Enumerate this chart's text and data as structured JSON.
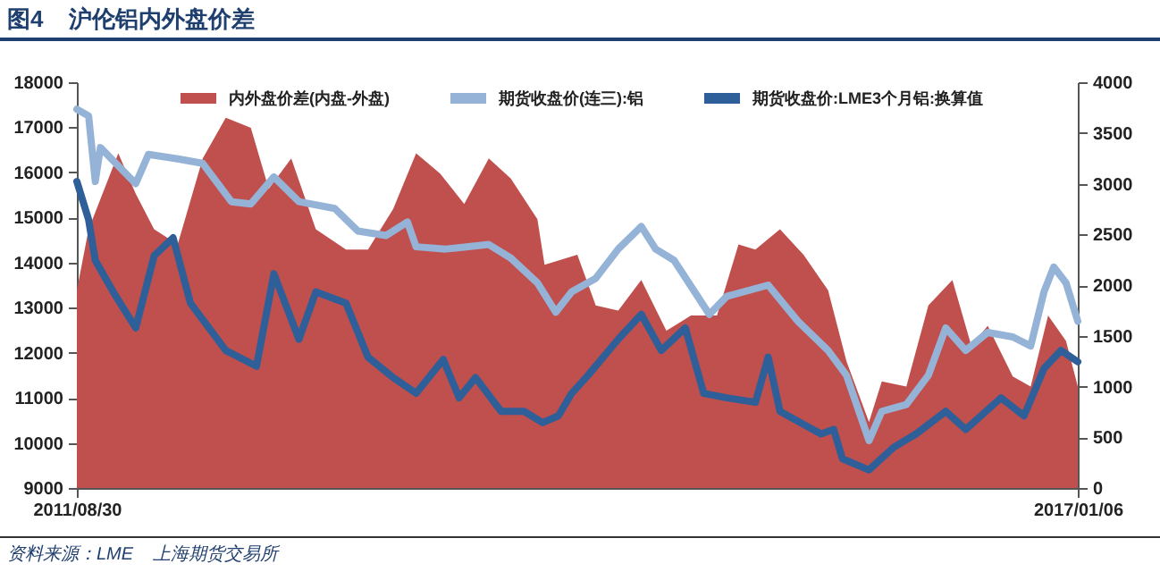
{
  "chart_data": {
    "type": "line",
    "title": "图4    沪伦铝内外盘价差",
    "annotations": [
      "资料来源：LME    上海期货交易所"
    ],
    "xlim": [
      "2011-08-30",
      "2017-01-06"
    ],
    "xticks": [
      {
        "value": "2011-08-30",
        "label": "2011/08/30"
      },
      {
        "value": "2017-01-06",
        "label": "2017/01/06"
      }
    ],
    "ylim": [
      9000,
      18000
    ],
    "yticks": [
      9000,
      10000,
      11000,
      12000,
      13000,
      14000,
      15000,
      16000,
      17000,
      18000
    ],
    "y2lim": [
      0,
      4000
    ],
    "y2ticks": [
      0,
      500,
      1000,
      1500,
      2000,
      2500,
      3000,
      3500,
      4000
    ],
    "grid": false,
    "legend": "top",
    "series": [
      {
        "name": "内外盘价差(内盘-外盘)",
        "type": "area",
        "axis": "y2",
        "color": "#c0504d",
        "x": [
          "2011-08-30",
          "2011-09-22",
          "2011-11-19",
          "2011-12-23",
          "2012-01-28",
          "2012-03-14",
          "2012-05-02",
          "2012-06-16",
          "2012-08-04",
          "2012-09-08",
          "2012-10-22",
          "2012-12-09",
          "2013-02-06",
          "2013-03-21",
          "2013-05-09",
          "2013-06-23",
          "2013-08-09",
          "2013-09-25",
          "2013-11-12",
          "2013-12-25",
          "2014-02-15",
          "2014-03-01",
          "2014-05-04",
          "2014-06-09",
          "2014-07-23",
          "2014-09-06",
          "2014-10-25",
          "2014-12-12",
          "2015-02-01",
          "2015-03-15",
          "2015-04-17",
          "2015-06-04",
          "2015-07-20",
          "2015-09-06",
          "2015-10-12",
          "2015-11-25",
          "2015-12-20",
          "2016-02-06",
          "2016-03-20",
          "2016-05-06",
          "2016-06-12",
          "2016-07-14",
          "2016-09-01",
          "2016-10-06",
          "2016-11-09",
          "2016-12-14",
          "2017-01-06"
        ],
        "values": [
          1950,
          2550,
          3300,
          2900,
          2550,
          2400,
          3250,
          3650,
          3550,
          2950,
          3250,
          2550,
          2350,
          2350,
          2750,
          3300,
          3100,
          2800,
          3250,
          3050,
          2650,
          2200,
          2300,
          1800,
          1750,
          2050,
          1550,
          1700,
          1700,
          2400,
          2350,
          2550,
          2300,
          1950,
          1250,
          650,
          1050,
          1000,
          1800,
          2050,
          1400,
          1600,
          1100,
          1000,
          1700,
          1450,
          1000
        ]
      },
      {
        "name": "期货收盘价(连三):铝",
        "axis": "y",
        "color": "#95b3d7",
        "x": [
          "2011-08-30",
          "2011-09-22",
          "2011-10-05",
          "2011-10-15",
          "2011-12-23",
          "2012-01-17",
          "2012-03-14",
          "2012-05-02",
          "2012-06-27",
          "2012-08-04",
          "2012-09-18",
          "2012-11-06",
          "2013-01-15",
          "2013-03-01",
          "2013-04-25",
          "2013-06-06",
          "2013-06-23",
          "2013-08-20",
          "2013-11-12",
          "2013-12-25",
          "2014-02-15",
          "2014-03-23",
          "2014-04-23",
          "2014-06-09",
          "2014-07-23",
          "2014-09-06",
          "2014-10-04",
          "2014-11-09",
          "2015-01-17",
          "2015-02-20",
          "2015-05-12",
          "2015-07-09",
          "2015-09-06",
          "2015-10-12",
          "2015-11-25",
          "2015-12-20",
          "2016-02-06",
          "2016-03-20",
          "2016-04-23",
          "2016-06-01",
          "2016-07-14",
          "2016-09-01",
          "2016-10-06",
          "2016-11-01",
          "2016-11-20",
          "2016-12-14",
          "2017-01-06"
        ],
        "values": [
          17400,
          17250,
          15800,
          16550,
          15750,
          16400,
          16300,
          16200,
          15350,
          15300,
          15900,
          15350,
          15200,
          14700,
          14600,
          14900,
          14350,
          14300,
          14400,
          14100,
          13550,
          12900,
          13350,
          13650,
          14300,
          14800,
          14300,
          14050,
          12850,
          13250,
          13500,
          12700,
          12050,
          11500,
          10050,
          10700,
          10850,
          11500,
          12550,
          12050,
          12450,
          12350,
          12150,
          13350,
          13900,
          13550,
          12700
        ]
      },
      {
        "name": "期货收盘价:LME3个月铝:换算值",
        "axis": "y",
        "color": "#2f5f98",
        "x": [
          "2011-08-30",
          "2011-09-22",
          "2011-10-05",
          "2011-11-09",
          "2011-12-23",
          "2012-01-28",
          "2012-03-05",
          "2012-04-08",
          "2012-06-16",
          "2012-08-15",
          "2012-09-18",
          "2012-11-06",
          "2012-12-09",
          "2013-02-06",
          "2013-03-21",
          "2013-05-09",
          "2013-06-23",
          "2013-08-15",
          "2013-09-15",
          "2013-10-17",
          "2013-12-06",
          "2014-01-20",
          "2014-02-25",
          "2014-03-28",
          "2014-04-23",
          "2014-05-25",
          "2014-07-23",
          "2014-09-06",
          "2014-10-15",
          "2014-12-01",
          "2015-01-06",
          "2015-02-20",
          "2015-04-17",
          "2015-05-12",
          "2015-06-04",
          "2015-08-23",
          "2015-09-17",
          "2015-10-04",
          "2015-11-25",
          "2016-01-12",
          "2016-02-25",
          "2016-04-23",
          "2016-06-01",
          "2016-08-09",
          "2016-09-23",
          "2016-11-01",
          "2016-12-04",
          "2017-01-06"
        ],
        "values": [
          15800,
          14950,
          14050,
          13350,
          12550,
          14150,
          14550,
          13100,
          12050,
          11700,
          13750,
          12300,
          13350,
          13100,
          11900,
          11450,
          11100,
          11850,
          11000,
          11450,
          10700,
          10700,
          10450,
          10600,
          11100,
          11500,
          12300,
          12850,
          12050,
          12550,
          11100,
          11000,
          10900,
          11900,
          10700,
          10200,
          10300,
          9650,
          9400,
          9900,
          10200,
          10700,
          10300,
          11000,
          10600,
          11650,
          12050,
          11800
        ]
      }
    ]
  }
}
